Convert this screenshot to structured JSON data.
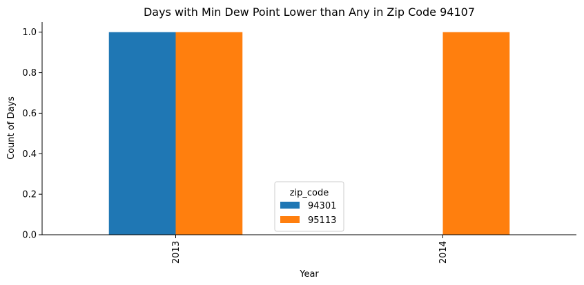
{
  "chart_data": {
    "type": "bar",
    "title": "Days with Min Dew Point Lower than Any in Zip Code 94107",
    "xlabel": "Year",
    "ylabel": "Count of Days",
    "categories": [
      "2013",
      "2014"
    ],
    "series": [
      {
        "name": "94301",
        "values": [
          1.0,
          0.0
        ],
        "color": "#1f77b4"
      },
      {
        "name": "95113",
        "values": [
          1.0,
          1.0
        ],
        "color": "#ff7f0e"
      }
    ],
    "ylim": [
      0,
      1.05
    ],
    "yticks": [
      "0.0",
      "0.2",
      "0.4",
      "0.6",
      "0.8",
      "1.0"
    ],
    "legend": {
      "title": "zip_code",
      "placement": "bottom-center"
    },
    "grid": false
  }
}
